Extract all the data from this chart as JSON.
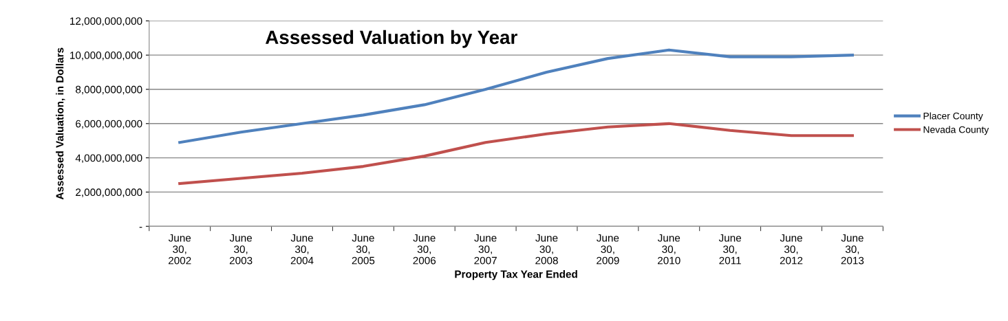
{
  "chart_data": {
    "type": "line",
    "title": "Assessed Valuation by Year",
    "xlabel": "Property Tax Year Ended",
    "ylabel": "Assessed Valuation, in Dollars",
    "categories": [
      "June\n30,\n2002",
      "June\n30,\n2003",
      "June\n30,\n2004",
      "June\n30,\n2005",
      "June\n30,\n2006",
      "June\n30,\n2007",
      "June\n30,\n2008",
      "June\n30,\n2009",
      "June\n30,\n2010",
      "June\n30,\n2011",
      "June\n30,\n2012",
      "June\n30,\n2013"
    ],
    "series": [
      {
        "name": "Placer County",
        "color": "#4f81bd",
        "values": [
          4900000000,
          5500000000,
          6000000000,
          6500000000,
          7100000000,
          8000000000,
          9000000000,
          9800000000,
          10300000000,
          9900000000,
          9900000000,
          10000000000
        ]
      },
      {
        "name": "Nevada County",
        "color": "#c0504d",
        "values": [
          2500000000,
          2800000000,
          3100000000,
          3500000000,
          4100000000,
          4900000000,
          5400000000,
          5800000000,
          6000000000,
          5600000000,
          5300000000,
          5300000000
        ]
      }
    ],
    "ylim": [
      0,
      12000000000
    ],
    "yticks": [
      {
        "value": 0,
        "label": "-"
      },
      {
        "value": 2000000000,
        "label": "2,000,000,000"
      },
      {
        "value": 4000000000,
        "label": "4,000,000,000"
      },
      {
        "value": 6000000000,
        "label": "6,000,000,000"
      },
      {
        "value": 8000000000,
        "label": "8,000,000,000"
      },
      {
        "value": 10000000000,
        "label": "10,000,000,000"
      },
      {
        "value": 12000000000,
        "label": "12,000,000,000"
      }
    ],
    "grid": "y",
    "legend": "right",
    "marker": "none",
    "line_style": "solid"
  }
}
